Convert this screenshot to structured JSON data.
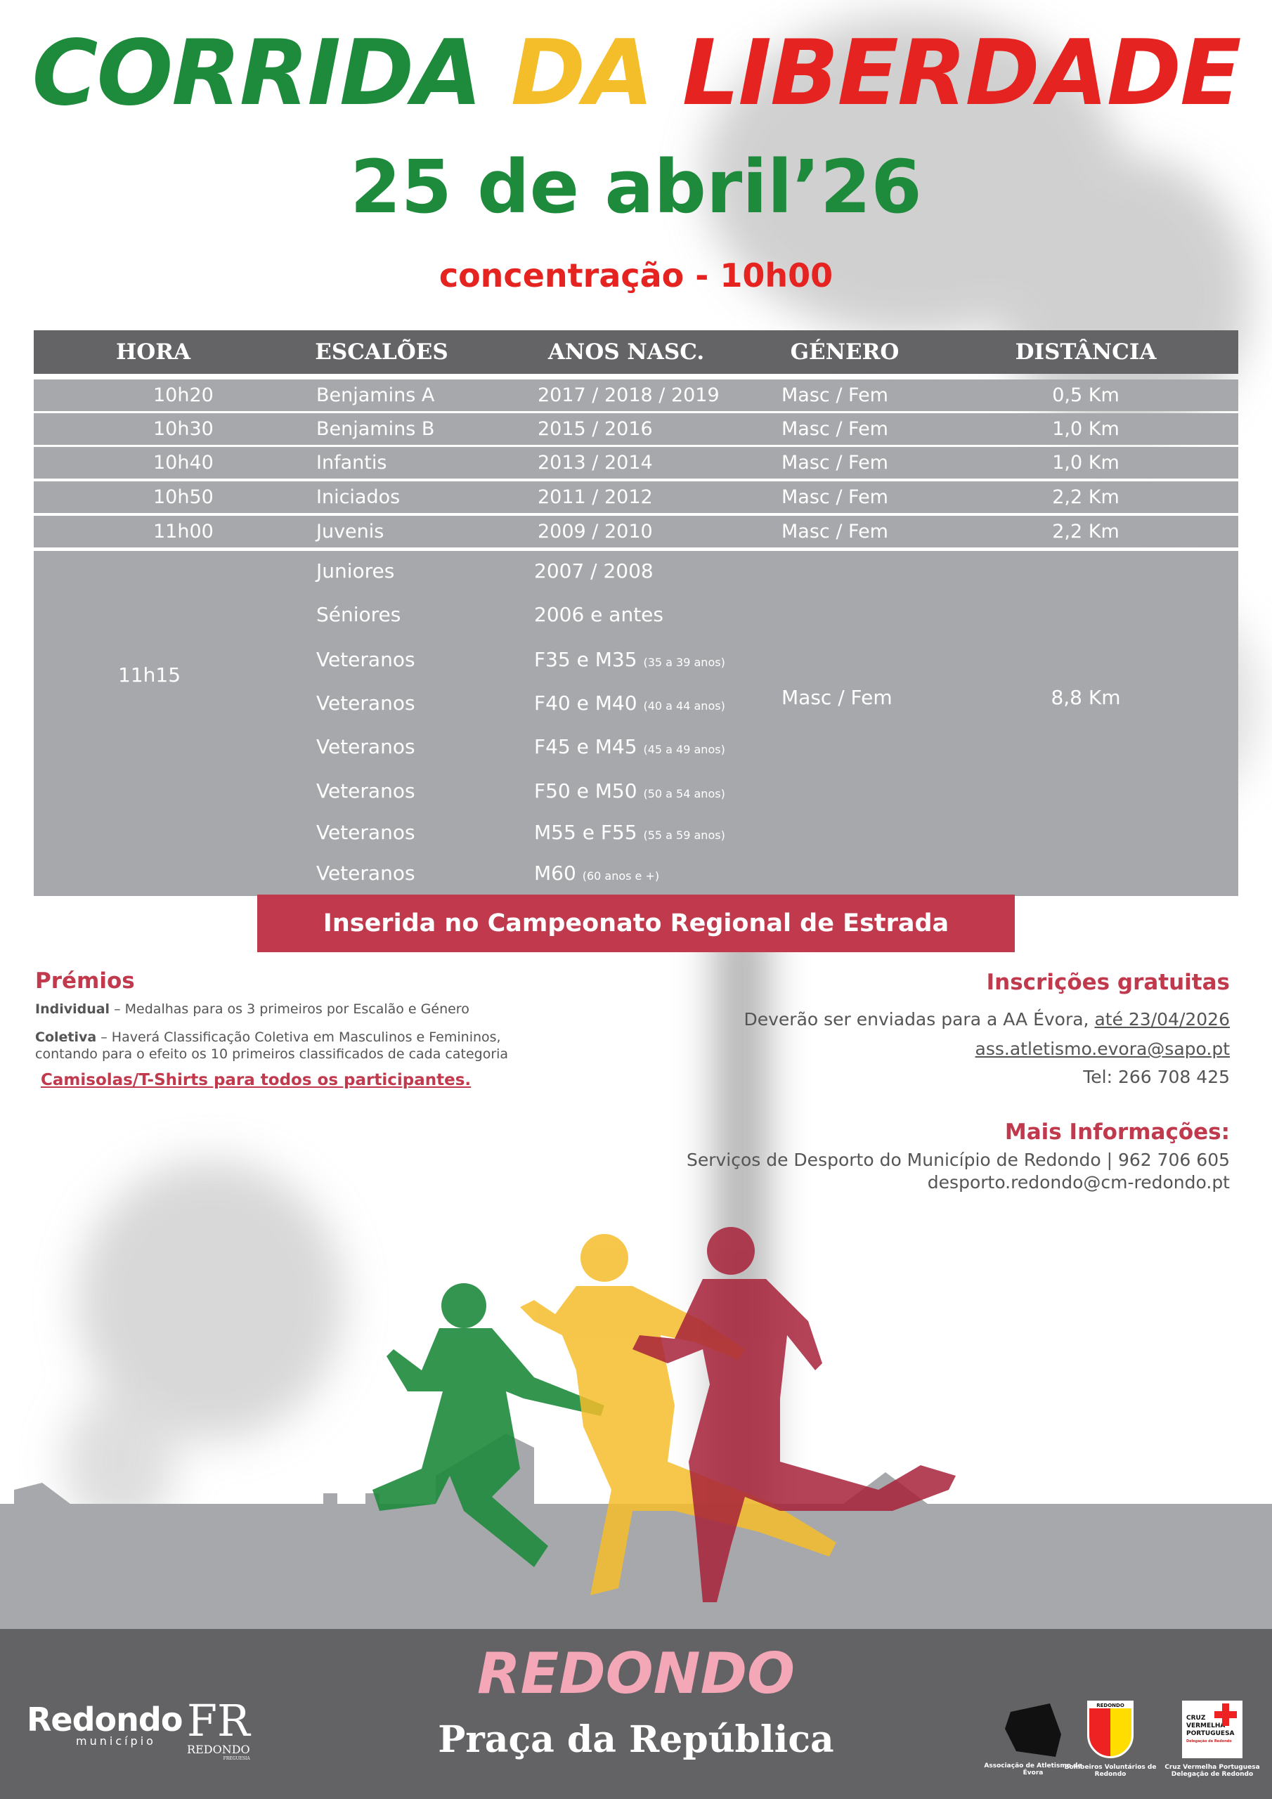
{
  "title": {
    "word1": "CORRIDA",
    "word2": "DA",
    "word3": "LIBERDADE",
    "colors": [
      "#1e8a3c",
      "#f4bd2a",
      "#e52320"
    ]
  },
  "date": "25 de abril’26",
  "concentration": "concentração - 10h00",
  "table": {
    "headers": [
      "HORA",
      "ESCALÕES",
      "ANOS NASC.",
      "GÉNERO",
      "DISTÂNCIA"
    ],
    "rows": [
      {
        "hora": "10h20",
        "escalao": "Benjamins A",
        "anos": "2017 / 2018 / 2019",
        "genero": "Masc / Fem",
        "distancia": "0,5 Km"
      },
      {
        "hora": "10h30",
        "escalao": "Benjamins B",
        "anos": "2015 / 2016",
        "genero": "Masc / Fem",
        "distancia": "1,0 Km"
      },
      {
        "hora": "10h40",
        "escalao": "Infantis",
        "anos": "2013 / 2014",
        "genero": "Masc / Fem",
        "distancia": "1,0 Km"
      },
      {
        "hora": "10h50",
        "escalao": "Iniciados",
        "anos": "2011 / 2012",
        "genero": "Masc / Fem",
        "distancia": "2,2 Km"
      },
      {
        "hora": "11h00",
        "escalao": "Juvenis",
        "anos": "2009 / 2010",
        "genero": "Masc / Fem",
        "distancia": "2,2 Km"
      }
    ],
    "group": {
      "hora": "11h15",
      "genero": "Masc / Fem",
      "distancia": "8,8 Km",
      "items": [
        {
          "escalao": "Juniores",
          "anos": "2007 / 2008",
          "note": ""
        },
        {
          "escalao": "Séniores",
          "anos": "2006 e antes",
          "note": ""
        },
        {
          "escalao": "Veteranos",
          "anos": "F35 e M35",
          "note": "(35 a 39 anos)"
        },
        {
          "escalao": "Veteranos",
          "anos": "F40 e M40",
          "note": "(40 a 44 anos)"
        },
        {
          "escalao": "Veteranos",
          "anos": "F45 e M45",
          "note": "(45 a 49 anos)"
        },
        {
          "escalao": "Veteranos",
          "anos": "F50 e M50",
          "note": "(50 a 54 anos)"
        },
        {
          "escalao": "Veteranos",
          "anos": "M55 e F55",
          "note": "(55 a 59 anos)"
        },
        {
          "escalao": "Veteranos",
          "anos": "M60",
          "note": "(60 anos e +)"
        }
      ]
    }
  },
  "banner": "Inserida no Campeonato Regional de Estrada",
  "prizes": {
    "heading": "Prémios",
    "individual_label": "Individual",
    "individual_text": " – Medalhas para os 3 primeiros por Escalão e Género",
    "coletiva_label": "Coletiva",
    "coletiva_text1": " – Haverá Classificação Coletiva em Masculinos e Femininos,",
    "coletiva_text2": "contando para o efeito os 10 primeiros classificados de cada categoria",
    "shirts": "Camisolas/T-Shirts para todos os participantes."
  },
  "registration": {
    "heading": "Inscrições gratuitas",
    "line1": "Deverão ser enviadas para a AA Évora, ",
    "deadline": "até 23/04/2026",
    "email": "ass.atletismo.evora@sapo.pt",
    "tel": "Tel: 266 708 425"
  },
  "info": {
    "heading": "Mais Informações:",
    "line1": "Serviços de Desporto do Município de Redondo | 962 706 605",
    "email": "desporto.redondo@cm-redondo.pt"
  },
  "footer": {
    "town": "REDONDO",
    "place": "Praça da República",
    "logos": [
      {
        "name": "Redondo",
        "sub": "município"
      },
      {
        "name": "REDONDO",
        "sub": "FREGUESIA",
        "mark": "FR"
      },
      {
        "caption": "Associação de Atletismo de Évora"
      },
      {
        "caption": "Bombeiros Voluntários de Redondo",
        "badge": "REDONDO"
      },
      {
        "caption": "Cruz Vermelha Portuguesa Delegação de Redondo",
        "text1": "CRUZ",
        "text2": "VERMELHA",
        "text3": "PORTUGUESA",
        "text4": "Delegação de Redondo"
      }
    ]
  },
  "colors": {
    "table_header": "#646466",
    "table_row": "#a7a8ab",
    "accent": "#c0394d",
    "footer": "#636366",
    "town": "#f4a7b7",
    "runner_green": "#1e8a3c",
    "runner_yellow": "#f4bd2a",
    "runner_red": "#a8223a"
  }
}
